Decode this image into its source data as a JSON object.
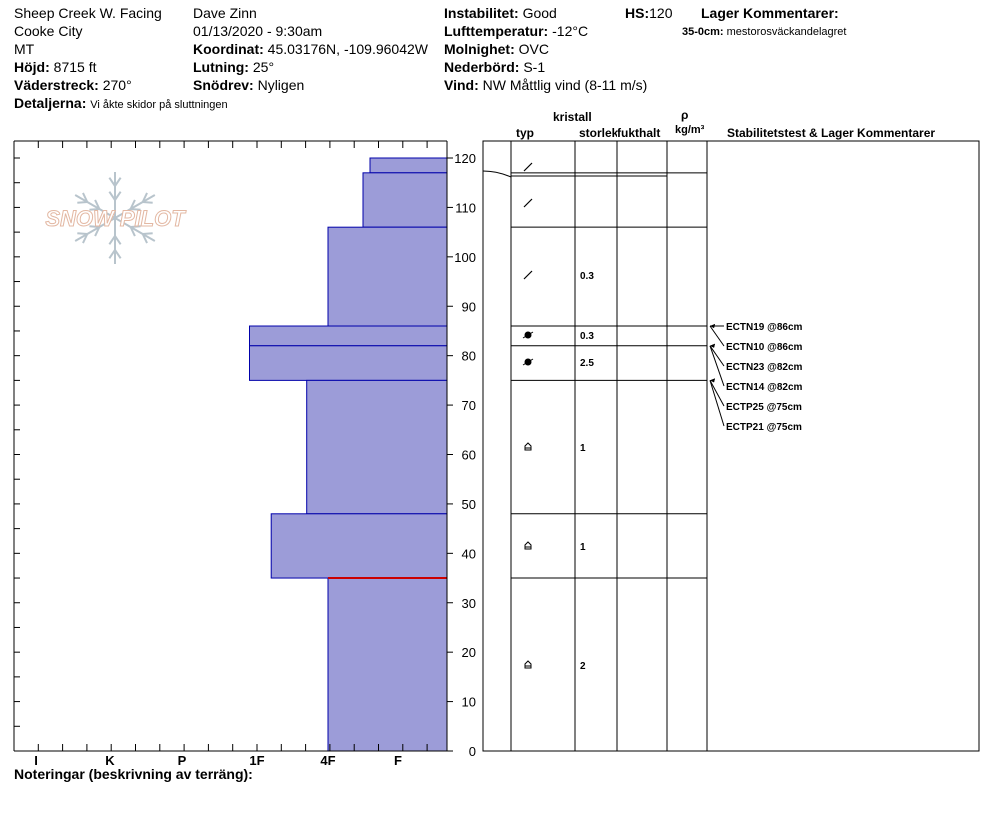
{
  "header": {
    "location": "Sheep Creek W. Facing",
    "city": "Cooke City",
    "state": "MT",
    "elevation_label": "Höjd:",
    "elevation": "8715 ft",
    "aspect_label": "Väderstreck:",
    "aspect": "270°",
    "details_label": "Detaljerna:",
    "details": "Vi åkte skidor på sluttningen",
    "observer": "Dave Zinn",
    "datetime": "01/13/2020 - 9:30am",
    "coord_label": "Koordinat:",
    "coord": "45.03176N, -109.96042W",
    "slope_label": "Lutning:",
    "slope": "25°",
    "drift_label": "Snödrev:",
    "drift": "Nyligen",
    "stability_label": "Instabilitet:",
    "stability": "Good",
    "airtemp_label": "Lufttemperatur:",
    "airtemp": "-12°C",
    "sky_label": "Molnighet:",
    "sky": "OVC",
    "precip_label": "Nederbörd:",
    "precip": "S-1",
    "wind_label": "Vind:",
    "wind": "NW Måttlig vind (8-11 m/s)",
    "hs_label": "HS:",
    "hs": "120",
    "layer_comments_label": "Lager Kommentarer:",
    "layer_comment_range": "35-0cm:",
    "layer_comment_text": "mestorosväckandelagret"
  },
  "logo": {
    "text": "SNOW PILOT"
  },
  "footer": {
    "notes_label": "Noteringar (beskrivning av terräng):"
  },
  "table_headers": {
    "crystal": "kristall",
    "type": "typ",
    "size": "storlek",
    "moisture": "fukthalt",
    "rho": "ρ",
    "density_unit": "kg/m³",
    "stability_comments": "Stabilitetstest & Lager Kommentarer"
  },
  "colors": {
    "layer_fill": "#9c9cd8",
    "layer_stroke": "#0000aa",
    "weak_layer": "#cc0000",
    "grid_line": "#000000"
  },
  "chart_data": {
    "type": "bar",
    "orientation": "horizontal",
    "value_axis": "hardness",
    "hardness_labels": [
      "I",
      "K",
      "P",
      "1F",
      "4F",
      "F"
    ],
    "hardness_scale_note": "scale index: F=0, 4F=1, 1F=2, P=3, K=4, I=5",
    "ylim": [
      0,
      120
    ],
    "yticks": [
      0,
      10,
      20,
      30,
      40,
      50,
      60,
      70,
      80,
      90,
      100,
      110,
      120
    ],
    "grid": false,
    "layers": [
      {
        "top": 120,
        "bottom": 117,
        "hardness_index": 0.4
      },
      {
        "top": 117,
        "bottom": 106,
        "hardness_index": 0.5
      },
      {
        "top": 106,
        "bottom": 86,
        "hardness_index": 1.0
      },
      {
        "top": 86,
        "bottom": 82,
        "hardness_index": 2.1
      },
      {
        "top": 82,
        "bottom": 75,
        "hardness_index": 2.1
      },
      {
        "top": 75,
        "bottom": 48,
        "hardness_index": 1.3
      },
      {
        "top": 48,
        "bottom": 35,
        "hardness_index": 1.8
      },
      {
        "top": 35,
        "bottom": 0,
        "hardness_index": 1.0
      }
    ],
    "weak_layer_depth": 35,
    "crystals": [
      {
        "top": 120,
        "bottom": 117,
        "type": "decomposing",
        "size": ""
      },
      {
        "top": 117,
        "bottom": 106,
        "type": "decomposing",
        "size": ""
      },
      {
        "top": 106,
        "bottom": 86,
        "type": "decomposing",
        "size": "0.3"
      },
      {
        "top": 86,
        "bottom": 82,
        "type": "rounded",
        "size": "0.3"
      },
      {
        "top": 82,
        "bottom": 75,
        "type": "rounded",
        "size": "2.5"
      },
      {
        "top": 75,
        "bottom": 48,
        "type": "depth-hoar",
        "size": "1"
      },
      {
        "top": 48,
        "bottom": 35,
        "type": "depth-hoar",
        "size": "1"
      },
      {
        "top": 35,
        "bottom": 0,
        "type": "depth-hoar",
        "size": "2"
      }
    ],
    "stability_tests": [
      {
        "label": "ECTN19 @86cm",
        "depth": 86
      },
      {
        "label": "ECTN10 @86cm",
        "depth": 86
      },
      {
        "label": "ECTN23 @82cm",
        "depth": 82
      },
      {
        "label": "ECTN14 @82cm",
        "depth": 82
      },
      {
        "label": "ECTP25 @75cm",
        "depth": 75
      },
      {
        "label": "ECTP21 @75cm",
        "depth": 75
      }
    ]
  }
}
